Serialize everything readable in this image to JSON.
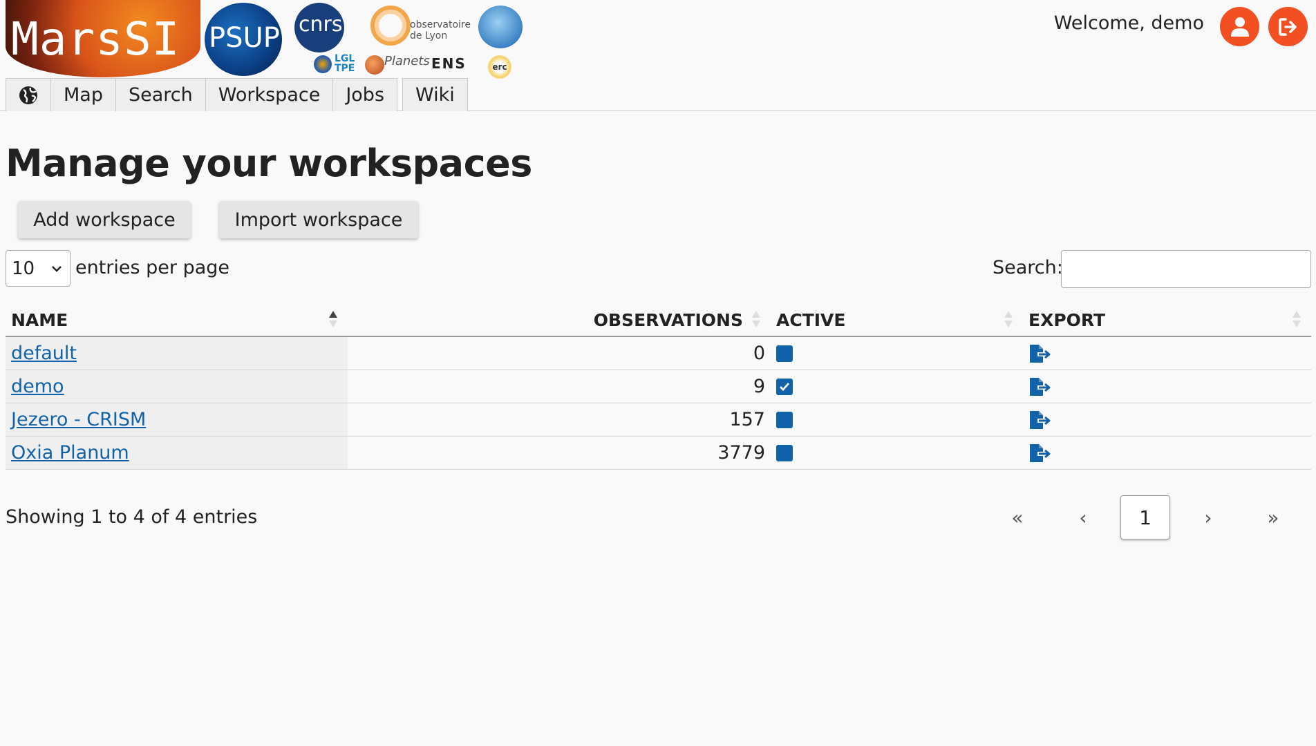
{
  "logos": {
    "mars": "MarsSI",
    "psup": "PSUP",
    "cnrs": "cnrs",
    "obs": "observatoire de Lyon",
    "lgl": "LGL TPE",
    "planets": "Planets",
    "ens": "ENS",
    "erc": "erc"
  },
  "header": {
    "welcome": "Welcome, demo",
    "accent_color": "#f25022"
  },
  "nav": {
    "items": [
      {
        "label": "Map"
      },
      {
        "label": "Search"
      },
      {
        "label": "Workspace"
      },
      {
        "label": "Jobs"
      },
      {
        "label": "Wiki"
      }
    ]
  },
  "page": {
    "title": "Manage your workspaces",
    "add_button": "Add workspace",
    "import_button": "Import workspace"
  },
  "controls": {
    "entries_value": "10",
    "entries_label": "entries per page",
    "search_label": "Search:",
    "search_value": ""
  },
  "table": {
    "headers": [
      "NAME",
      "OBSERVATIONS",
      "ACTIVE",
      "EXPORT"
    ],
    "rows": [
      {
        "name": "default",
        "observations": "0",
        "active": false
      },
      {
        "name": "demo",
        "observations": "9",
        "active": true
      },
      {
        "name": "Jezero - CRISM",
        "observations": "157",
        "active": false
      },
      {
        "name": "Oxia Planum",
        "observations": "3779",
        "active": false
      }
    ],
    "link_color": "#1162a8"
  },
  "footer": {
    "info": "Showing 1 to 4 of 4 entries",
    "first": "«",
    "prev": "‹",
    "current": "1",
    "next": "›",
    "last": "»"
  }
}
